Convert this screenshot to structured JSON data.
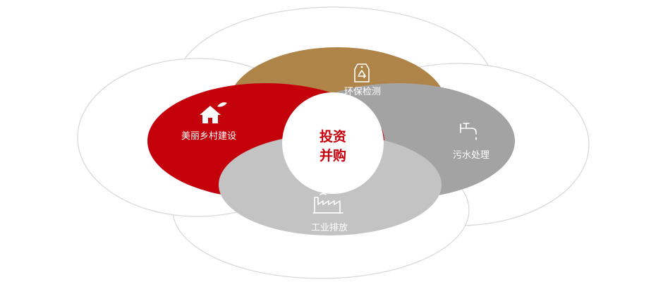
{
  "diagram": {
    "center": {
      "line1": "投资",
      "line2": "并购",
      "color": "#c8000c"
    },
    "segments": [
      {
        "id": "environmental-testing",
        "label": "环保检测",
        "icon": "recycle-tag-icon",
        "color": "#ae8448"
      },
      {
        "id": "sewage-treatment",
        "label": "污水处理",
        "icon": "faucet-icon",
        "color": "#a3a3a3"
      },
      {
        "id": "industrial-emissions",
        "label": "工业排放",
        "icon": "factory-icon",
        "color": "#c3c3c3"
      },
      {
        "id": "beautiful-countryside",
        "label": "美丽乡村建设",
        "icon": "house-leaf-icon",
        "color": "#c4000b"
      }
    ],
    "outline_color": "#d7d7d7"
  }
}
